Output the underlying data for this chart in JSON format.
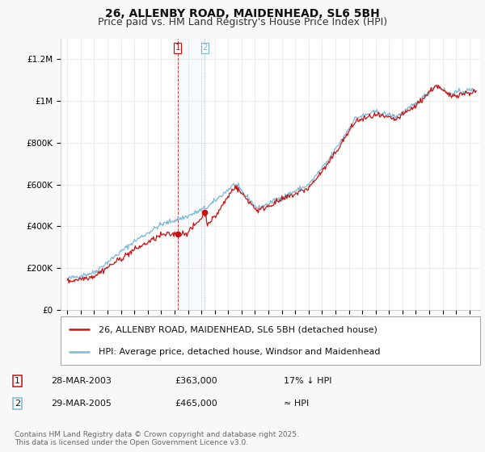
{
  "title": "26, ALLENBY ROAD, MAIDENHEAD, SL6 5BH",
  "subtitle": "Price paid vs. HM Land Registry's House Price Index (HPI)",
  "ylim": [
    0,
    1300000
  ],
  "yticks": [
    0,
    200000,
    400000,
    600000,
    800000,
    1000000,
    1200000
  ],
  "ytick_labels": [
    "£0",
    "£200K",
    "£400K",
    "£600K",
    "£800K",
    "£1M",
    "£1.2M"
  ],
  "background_color": "#f8f8f8",
  "plot_background": "#ffffff",
  "hpi_color": "#7ab8d8",
  "price_color": "#cc1111",
  "legend_items": [
    "26, ALLENBY ROAD, MAIDENHEAD, SL6 5BH (detached house)",
    "HPI: Average price, detached house, Windsor and Maidenhead"
  ],
  "sale1_date": 2003.24,
  "sale1_price": 363000,
  "sale2_date": 2005.24,
  "sale2_price": 465000,
  "annotation1": [
    "1",
    "28-MAR-2003",
    "£363,000",
    "17% ↓ HPI"
  ],
  "annotation2": [
    "2",
    "29-MAR-2005",
    "£465,000",
    "≈ HPI"
  ],
  "footer": "Contains HM Land Registry data © Crown copyright and database right 2025.\nThis data is licensed under the Open Government Licence v3.0.",
  "title_fontsize": 10,
  "subtitle_fontsize": 9,
  "tick_fontsize": 7.5,
  "legend_fontsize": 8,
  "annot_fontsize": 8,
  "footer_fontsize": 6.5
}
